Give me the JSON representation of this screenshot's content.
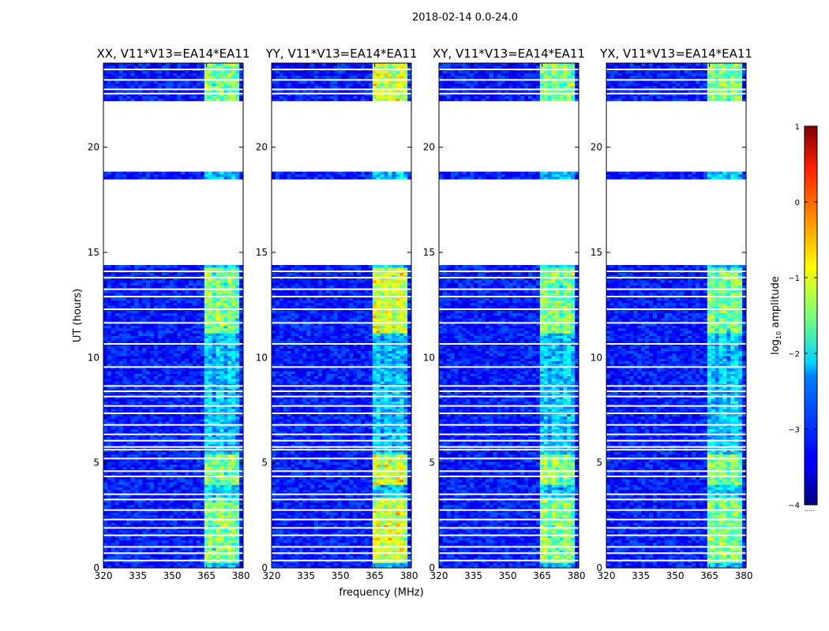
{
  "figure_title": "2018-02-14 0.0-24.0",
  "chart_data": {
    "type": "heatmap",
    "suptitle": "2018-02-14 0.0-24.0",
    "xlabel": "frequency (MHz)",
    "ylabel": "UT (hours)",
    "xlim": [
      320,
      381
    ],
    "ylim": [
      0,
      24
    ],
    "x_ticks": [
      320,
      335,
      350,
      365,
      380
    ],
    "y_ticks": [
      0,
      5,
      10,
      15,
      20
    ],
    "panels": [
      {
        "title": "XX, V11*V13=EA14*EA11",
        "pol": "XX"
      },
      {
        "title": "YY, V11*V13=EA14*EA11",
        "pol": "YY"
      },
      {
        "title": "XY, V11*V13=EA14*EA11",
        "pol": "XY"
      },
      {
        "title": "YX, V11*V13=EA14*EA11",
        "pol": "YX"
      }
    ],
    "data_gaps_hours": [
      [
        18.8,
        22.2
      ],
      [
        14.45,
        18.5
      ]
    ],
    "bright_band_mhz": [
      363.5,
      379.5
    ],
    "bright_time_ranges_hours": [
      [
        0.3,
        3.3
      ],
      [
        4,
        5.4
      ],
      [
        11.2,
        14.3
      ],
      [
        22.2,
        24
      ]
    ],
    "colorbar": {
      "label": "log",
      "label_sub": "10",
      "label_rest": " amplitude",
      "range": [
        -4,
        1
      ],
      "ticks": [
        1,
        0,
        -1,
        -2,
        -3,
        -4
      ],
      "colormap": "jet"
    }
  }
}
